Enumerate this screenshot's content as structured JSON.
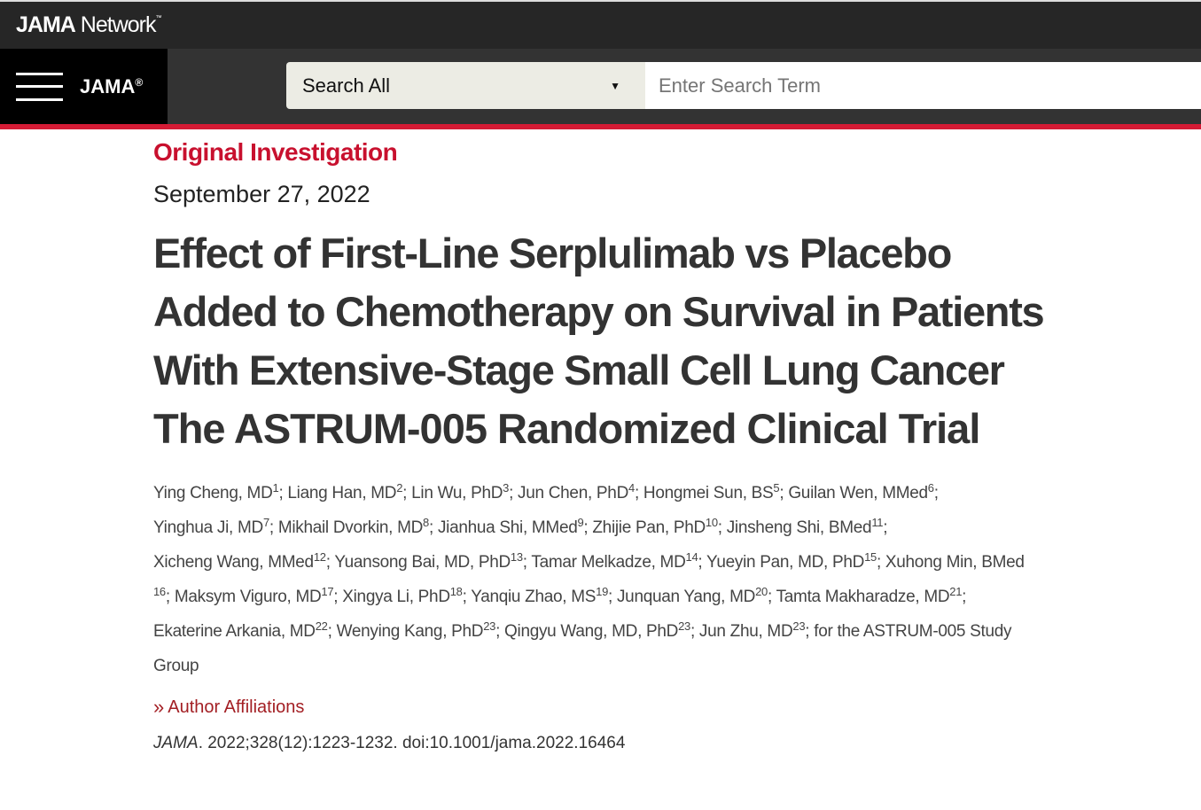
{
  "network": {
    "brand_bold": "JAMA",
    "brand_light": "Network",
    "tm": "™"
  },
  "nav": {
    "journal": "JAMA",
    "reg": "®",
    "search_scope": "Search All",
    "caret": "▼",
    "search_placeholder": "Enter Search Term"
  },
  "article": {
    "type": "Original Investigation",
    "date": "September 27, 2022",
    "title_lines": [
      "Effect of First-Line Serplulimab vs Placebo",
      "Added to Chemotherapy on Survival in Patients",
      "With Extensive-Stage Small Cell Lung Cancer"
    ],
    "subtitle": "The ASTRUM-005 Randomized Clinical Trial",
    "author_lines": [
      [
        {
          "t": "Ying Cheng, MD",
          "s": "1"
        },
        {
          "t": "; Liang Han, MD",
          "s": "2"
        },
        {
          "t": "; Lin Wu, PhD",
          "s": "3"
        },
        {
          "t": "; Jun Chen, PhD",
          "s": "4"
        },
        {
          "t": "; Hongmei Sun, BS",
          "s": "5"
        },
        {
          "t": "; Guilan Wen, MMed",
          "s": "6"
        },
        {
          "t": ";",
          "s": ""
        }
      ],
      [
        {
          "t": "Yinghua Ji, MD",
          "s": "7"
        },
        {
          "t": "; Mikhail Dvorkin, MD",
          "s": "8"
        },
        {
          "t": "; Jianhua Shi, MMed",
          "s": "9"
        },
        {
          "t": "; Zhijie Pan, PhD",
          "s": "10"
        },
        {
          "t": "; Jinsheng Shi, BMed",
          "s": "11"
        },
        {
          "t": ";",
          "s": ""
        }
      ],
      [
        {
          "t": "Xicheng Wang, MMed",
          "s": "12"
        },
        {
          "t": "; Yuansong Bai, MD, PhD",
          "s": "13"
        },
        {
          "t": "; Tamar Melkadze, MD",
          "s": "14"
        },
        {
          "t": "; Yueyin Pan, MD, PhD",
          "s": "15"
        },
        {
          "t": "; Xuhong Min, BMed",
          "s": ""
        }
      ],
      [
        {
          "t": "",
          "s": "16"
        },
        {
          "t": "; Maksym Viguro, MD",
          "s": "17"
        },
        {
          "t": "; Xingya Li, PhD",
          "s": "18"
        },
        {
          "t": "; Yanqiu Zhao, MS",
          "s": "19"
        },
        {
          "t": "; Junquan Yang, MD",
          "s": "20"
        },
        {
          "t": "; Tamta Makharadze, MD",
          "s": "21"
        },
        {
          "t": ";",
          "s": ""
        }
      ],
      [
        {
          "t": "Ekaterine Arkania, MD",
          "s": "22"
        },
        {
          "t": "; Wenying Kang, PhD",
          "s": "23"
        },
        {
          "t": "; Qingyu Wang, MD, PhD",
          "s": "23"
        },
        {
          "t": "; Jun Zhu, MD",
          "s": "23"
        },
        {
          "t": "; for the ASTRUM-005 Study",
          "s": ""
        }
      ],
      [
        {
          "t": "Group",
          "s": ""
        }
      ]
    ],
    "affiliations_label": "Author Affiliations",
    "chevron": "»",
    "citation_journal": "JAMA",
    "citation_rest": ". 2022;328(12):1223-1232. doi:10.1001/jama.2022.16464"
  },
  "colors": {
    "accent": "#c8102e",
    "topbar": "#262626",
    "navbar": "#333333",
    "link": "#a31f24"
  }
}
